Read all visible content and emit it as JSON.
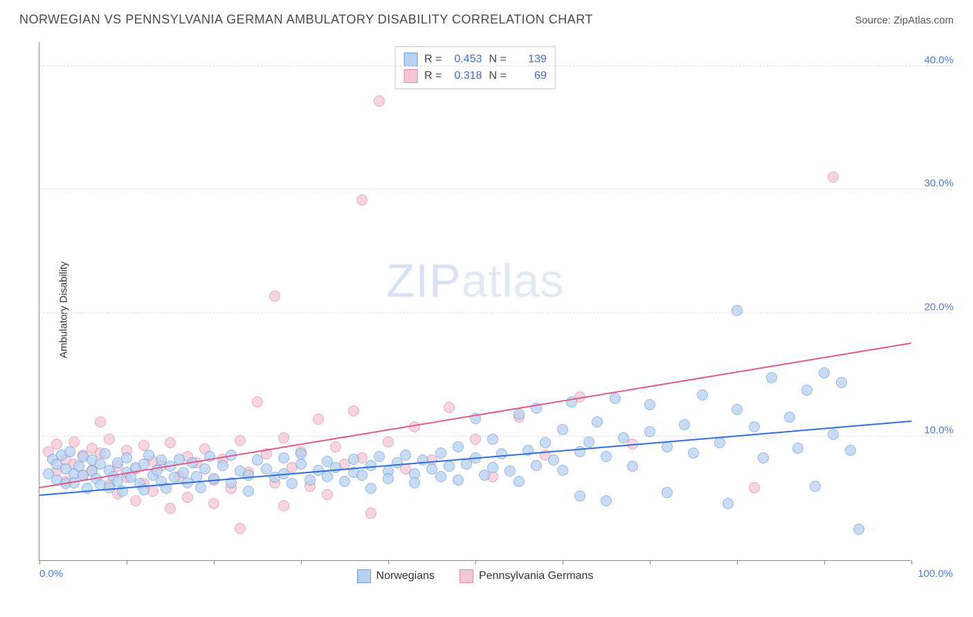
{
  "title": "NORWEGIAN VS PENNSYLVANIA GERMAN AMBULATORY DISABILITY CORRELATION CHART",
  "source": "Source: ZipAtlas.com",
  "ylabel": "Ambulatory Disability",
  "watermark_a": "ZIP",
  "watermark_b": "atlas",
  "chart": {
    "type": "scatter",
    "xlim": [
      0,
      100
    ],
    "ylim": [
      0,
      42
    ],
    "x_ticks": [
      0,
      10,
      20,
      30,
      40,
      50,
      60,
      70,
      80,
      90,
      100
    ],
    "x_tick_labels": {
      "0": "0.0%",
      "100": "100.0%"
    },
    "y_grid": [
      10,
      20,
      30,
      40
    ],
    "y_tick_labels": {
      "10": "10.0%",
      "20": "20.0%",
      "30": "30.0%",
      "40": "40.0%"
    },
    "grid_color": "#dddddd",
    "axis_color": "#888888",
    "tick_label_color": "#4a7bd8",
    "background_color": "#ffffff",
    "marker_radius": 8,
    "marker_border_width": 1,
    "series": [
      {
        "name": "Norwegians",
        "fill": "#b9d1f0",
        "stroke": "#6a9fe0",
        "fill_opacity": 0.75,
        "R": "0.453",
        "N": "139",
        "trend": {
          "x1": 0,
          "y1": 5.2,
          "x2": 100,
          "y2": 11.2,
          "color": "#2b6fe0",
          "width": 2
        },
        "points": [
          [
            1,
            7
          ],
          [
            1.5,
            8.2
          ],
          [
            2,
            6.5
          ],
          [
            2,
            7.8
          ],
          [
            2.5,
            8.5
          ],
          [
            3,
            6.2
          ],
          [
            3,
            7.4
          ],
          [
            3.5,
            8.8
          ],
          [
            4,
            7
          ],
          [
            4,
            6.3
          ],
          [
            4.5,
            7.6
          ],
          [
            5,
            8.4
          ],
          [
            5,
            6.9
          ],
          [
            5.5,
            5.8
          ],
          [
            6,
            7.2
          ],
          [
            6,
            8.1
          ],
          [
            6.5,
            6.6
          ],
          [
            7,
            7.8
          ],
          [
            7,
            6.1
          ],
          [
            7.5,
            8.6
          ],
          [
            8,
            7.3
          ],
          [
            8,
            5.9
          ],
          [
            8.5,
            6.8
          ],
          [
            9,
            7.9
          ],
          [
            9,
            6.4
          ],
          [
            9.5,
            5.6
          ],
          [
            10,
            7.1
          ],
          [
            10,
            8.3
          ],
          [
            10.5,
            6.7
          ],
          [
            11,
            7.5
          ],
          [
            11.5,
            6.2
          ],
          [
            12,
            7.8
          ],
          [
            12,
            5.7
          ],
          [
            12.5,
            8.5
          ],
          [
            13,
            6.9
          ],
          [
            13.5,
            7.3
          ],
          [
            14,
            6.4
          ],
          [
            14,
            8.1
          ],
          [
            14.5,
            5.8
          ],
          [
            15,
            7.6
          ],
          [
            15.5,
            6.7
          ],
          [
            16,
            8.2
          ],
          [
            16.5,
            7.1
          ],
          [
            17,
            6.3
          ],
          [
            17.5,
            7.9
          ],
          [
            18,
            6.8
          ],
          [
            18.5,
            5.9
          ],
          [
            19,
            7.4
          ],
          [
            19.5,
            8.4
          ],
          [
            20,
            6.6
          ],
          [
            21,
            7.7
          ],
          [
            22,
            6.3
          ],
          [
            22,
            8.5
          ],
          [
            23,
            7.2
          ],
          [
            24,
            6.9
          ],
          [
            24,
            5.6
          ],
          [
            25,
            8.1
          ],
          [
            26,
            7.4
          ],
          [
            27,
            6.7
          ],
          [
            28,
            8.3
          ],
          [
            28,
            7.0
          ],
          [
            29,
            6.2
          ],
          [
            30,
            7.8
          ],
          [
            30,
            8.6
          ],
          [
            31,
            6.5
          ],
          [
            32,
            7.3
          ],
          [
            33,
            8.0
          ],
          [
            33,
            6.8
          ],
          [
            34,
            7.5
          ],
          [
            35,
            6.4
          ],
          [
            36,
            8.2
          ],
          [
            36,
            7.1
          ],
          [
            37,
            6.9
          ],
          [
            38,
            7.7
          ],
          [
            38,
            5.8
          ],
          [
            39,
            8.4
          ],
          [
            40,
            7.2
          ],
          [
            40,
            6.6
          ],
          [
            41,
            7.9
          ],
          [
            42,
            8.5
          ],
          [
            43,
            7.0
          ],
          [
            43,
            6.3
          ],
          [
            44,
            8.1
          ],
          [
            45,
            7.4
          ],
          [
            46,
            6.8
          ],
          [
            46,
            8.7
          ],
          [
            47,
            7.6
          ],
          [
            48,
            6.5
          ],
          [
            48,
            9.2
          ],
          [
            49,
            7.8
          ],
          [
            50,
            8.3
          ],
          [
            50,
            11.5
          ],
          [
            51,
            6.9
          ],
          [
            52,
            7.5
          ],
          [
            52,
            9.8
          ],
          [
            53,
            8.6
          ],
          [
            54,
            7.2
          ],
          [
            55,
            11.8
          ],
          [
            55,
            6.4
          ],
          [
            56,
            8.9
          ],
          [
            57,
            7.7
          ],
          [
            57,
            12.3
          ],
          [
            58,
            9.5
          ],
          [
            59,
            8.1
          ],
          [
            60,
            10.6
          ],
          [
            60,
            7.3
          ],
          [
            61,
            12.8
          ],
          [
            62,
            8.8
          ],
          [
            62,
            5.2
          ],
          [
            63,
            9.6
          ],
          [
            64,
            11.2
          ],
          [
            65,
            8.4
          ],
          [
            65,
            4.8
          ],
          [
            66,
            13.1
          ],
          [
            67,
            9.9
          ],
          [
            68,
            7.6
          ],
          [
            70,
            10.4
          ],
          [
            70,
            12.6
          ],
          [
            72,
            9.2
          ],
          [
            72,
            5.5
          ],
          [
            74,
            11.0
          ],
          [
            75,
            8.7
          ],
          [
            76,
            13.4
          ],
          [
            78,
            9.5
          ],
          [
            79,
            4.6
          ],
          [
            80,
            12.2
          ],
          [
            80,
            20.2
          ],
          [
            82,
            10.8
          ],
          [
            83,
            8.3
          ],
          [
            84,
            14.8
          ],
          [
            86,
            11.6
          ],
          [
            87,
            9.1
          ],
          [
            88,
            13.8
          ],
          [
            89,
            6.0
          ],
          [
            90,
            15.2
          ],
          [
            91,
            10.2
          ],
          [
            92,
            14.4
          ],
          [
            93,
            8.9
          ],
          [
            94,
            2.5
          ]
        ]
      },
      {
        "name": "Pennsylvania Germans",
        "fill": "#f4c7d4",
        "stroke": "#e28ba6",
        "fill_opacity": 0.75,
        "R": "0.318",
        "N": "69",
        "trend": {
          "x1": 0,
          "y1": 5.8,
          "x2": 100,
          "y2": 17.5,
          "color": "#e05a85",
          "width": 2
        },
        "points": [
          [
            1,
            8.8
          ],
          [
            2,
            7.2
          ],
          [
            2,
            9.4
          ],
          [
            3,
            8.1
          ],
          [
            3,
            6.4
          ],
          [
            4,
            9.6
          ],
          [
            4,
            7.8
          ],
          [
            5,
            8.5
          ],
          [
            5,
            6.9
          ],
          [
            6,
            9.1
          ],
          [
            6,
            7.3
          ],
          [
            7,
            8.7
          ],
          [
            7,
            11.2
          ],
          [
            8,
            6.1
          ],
          [
            8,
            9.8
          ],
          [
            9,
            7.6
          ],
          [
            9,
            5.4
          ],
          [
            10,
            8.9
          ],
          [
            10,
            6.7
          ],
          [
            11,
            7.4
          ],
          [
            11,
            4.8
          ],
          [
            12,
            9.3
          ],
          [
            12,
            6.2
          ],
          [
            13,
            8.0
          ],
          [
            13,
            5.6
          ],
          [
            14,
            7.7
          ],
          [
            15,
            9.5
          ],
          [
            15,
            4.2
          ],
          [
            16,
            6.8
          ],
          [
            17,
            8.4
          ],
          [
            17,
            5.1
          ],
          [
            18,
            7.9
          ],
          [
            19,
            9.0
          ],
          [
            20,
            6.5
          ],
          [
            20,
            4.6
          ],
          [
            21,
            8.2
          ],
          [
            22,
            5.8
          ],
          [
            23,
            9.7
          ],
          [
            23,
            2.6
          ],
          [
            24,
            7.1
          ],
          [
            25,
            12.8
          ],
          [
            26,
            8.6
          ],
          [
            27,
            6.3
          ],
          [
            28,
            9.9
          ],
          [
            28,
            4.4
          ],
          [
            29,
            7.5
          ],
          [
            30,
            8.8
          ],
          [
            31,
            6.0
          ],
          [
            32,
            11.4
          ],
          [
            33,
            5.3
          ],
          [
            34,
            9.2
          ],
          [
            35,
            7.8
          ],
          [
            36,
            12.1
          ],
          [
            37,
            8.3
          ],
          [
            38,
            3.8
          ],
          [
            39,
            37.2
          ],
          [
            40,
            9.6
          ],
          [
            42,
            7.4
          ],
          [
            43,
            10.8
          ],
          [
            45,
            8.1
          ],
          [
            47,
            12.4
          ],
          [
            50,
            9.8
          ],
          [
            52,
            6.8
          ],
          [
            55,
            11.6
          ],
          [
            58,
            8.5
          ],
          [
            62,
            13.2
          ],
          [
            68,
            9.4
          ],
          [
            82,
            5.9
          ],
          [
            91,
            31.0
          ]
        ]
      }
    ]
  },
  "stats_labels": {
    "R": "R =",
    "N": "N ="
  },
  "legend_labels": [
    "Norwegians",
    "Pennsylvania Germans"
  ],
  "series_float": {
    "pink_special": [
      [
        27,
        21.4
      ],
      [
        37,
        29.2
      ]
    ]
  }
}
